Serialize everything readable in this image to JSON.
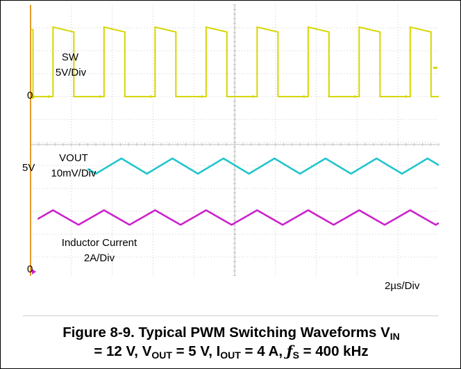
{
  "chart_data": {
    "type": "line",
    "title": "Figure 8-9. Typical PWM Switching Waveforms",
    "xlabel": "2µs/Div",
    "time_per_div_us": 2,
    "divisions_x": 10,
    "grid": true,
    "switching_frequency_khz": 400,
    "conditions": {
      "vin_v": 12,
      "vout_v": 5,
      "iout_a": 4,
      "fs_khz": 400
    },
    "traces": [
      {
        "name": "SW",
        "scale": "5V/Div",
        "ground_label": "0",
        "color": "#d6d600",
        "waveform": "square",
        "low_v": 0,
        "high_v": 12,
        "period_us": 2.5,
        "rise_time_us": [
          1.1,
          3.6,
          6.1,
          8.6,
          11.1,
          13.6,
          16.1,
          18.6
        ]
      },
      {
        "name": "VOUT",
        "scale": "10mV/Div",
        "ground_label": "5V",
        "color": "#22c5cc",
        "waveform": "triangle",
        "dc_v": 5,
        "ripple_mv_pp": 5,
        "period_us": 2.5
      },
      {
        "name": "Inductor Current",
        "scale": "2A/Div",
        "ground_label": "0",
        "color": "#cc22cc",
        "waveform": "triangle",
        "dc_a": 4,
        "ripple_a_pp": 1.3,
        "period_us": 2.5
      }
    ]
  },
  "labels": {
    "sw_name": "SW",
    "sw_scale": "5V/Div",
    "sw_zero": "0",
    "vout_name": "VOUT",
    "vout_scale": "10mV/Div",
    "vout_ref": "5V",
    "il_name": "Inductor Current",
    "il_scale": "2A/Div",
    "il_zero": "0",
    "timebase": "2µs/Div"
  },
  "caption": {
    "line1_prefix": "Figure 8-9. Typical PWM Switching Waveforms V",
    "line1_sub": "IN",
    "line2_a": "= 12 V, V",
    "line2_sub1": "OUT",
    "line2_b": " = 5 V, I",
    "line2_sub2": "OUT",
    "line2_c": " = 4 A, ",
    "line2_fs": "ƒ",
    "line2_sub3": "S",
    "line2_d": " = 400 kHz"
  }
}
